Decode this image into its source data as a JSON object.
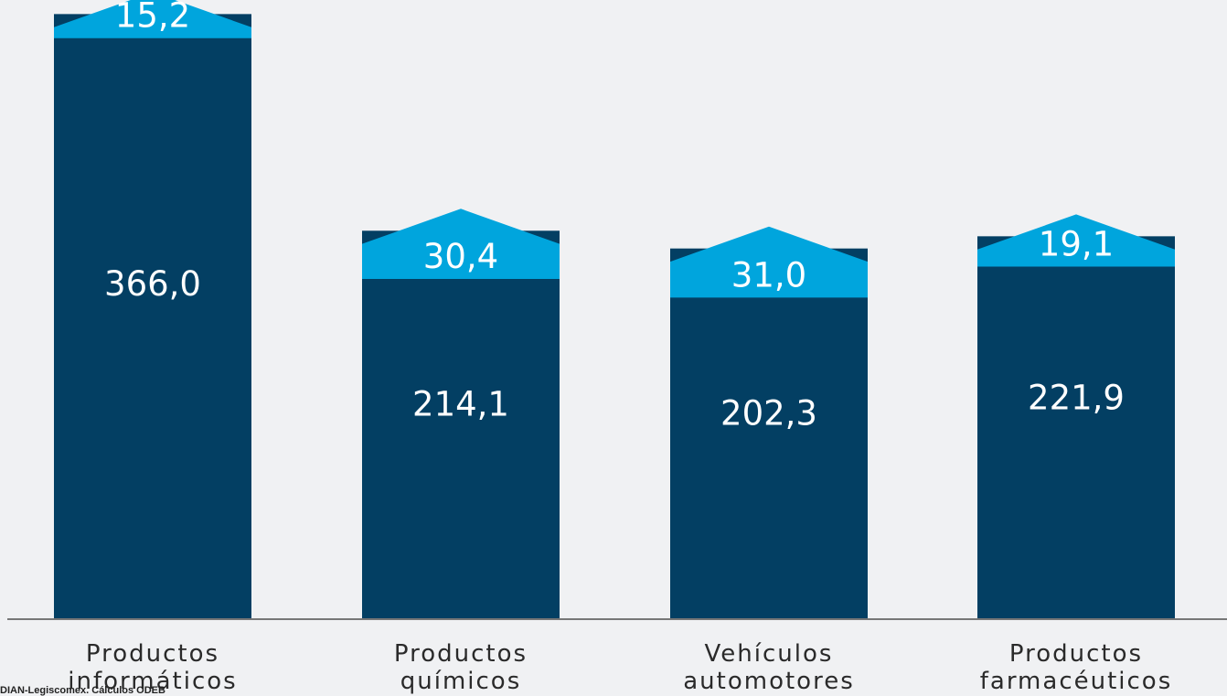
{
  "chart_data": {
    "type": "bar",
    "categories": [
      "Productos\ninformáticos",
      "Productos\nquímicos",
      "Vehículos\nautomotores",
      "Productos\nfarmacéuticos"
    ],
    "series": [
      {
        "values": [
          366.0,
          214.1,
          202.3,
          221.9
        ],
        "labels": [
          "366,0",
          "214,1",
          "202,3",
          "221,9"
        ]
      },
      {
        "values": [
          15.2,
          30.4,
          31.0,
          19.1
        ],
        "labels": [
          "15,2",
          "30,4",
          "31,0",
          "19,1"
        ]
      }
    ],
    "colors": {
      "base": "#033f63",
      "top": "#00a5dd",
      "axis": "#777777"
    },
    "ylim": [
      0,
      400
    ]
  },
  "source": "DIAN-Legiscomex. Cálculos ODEB"
}
